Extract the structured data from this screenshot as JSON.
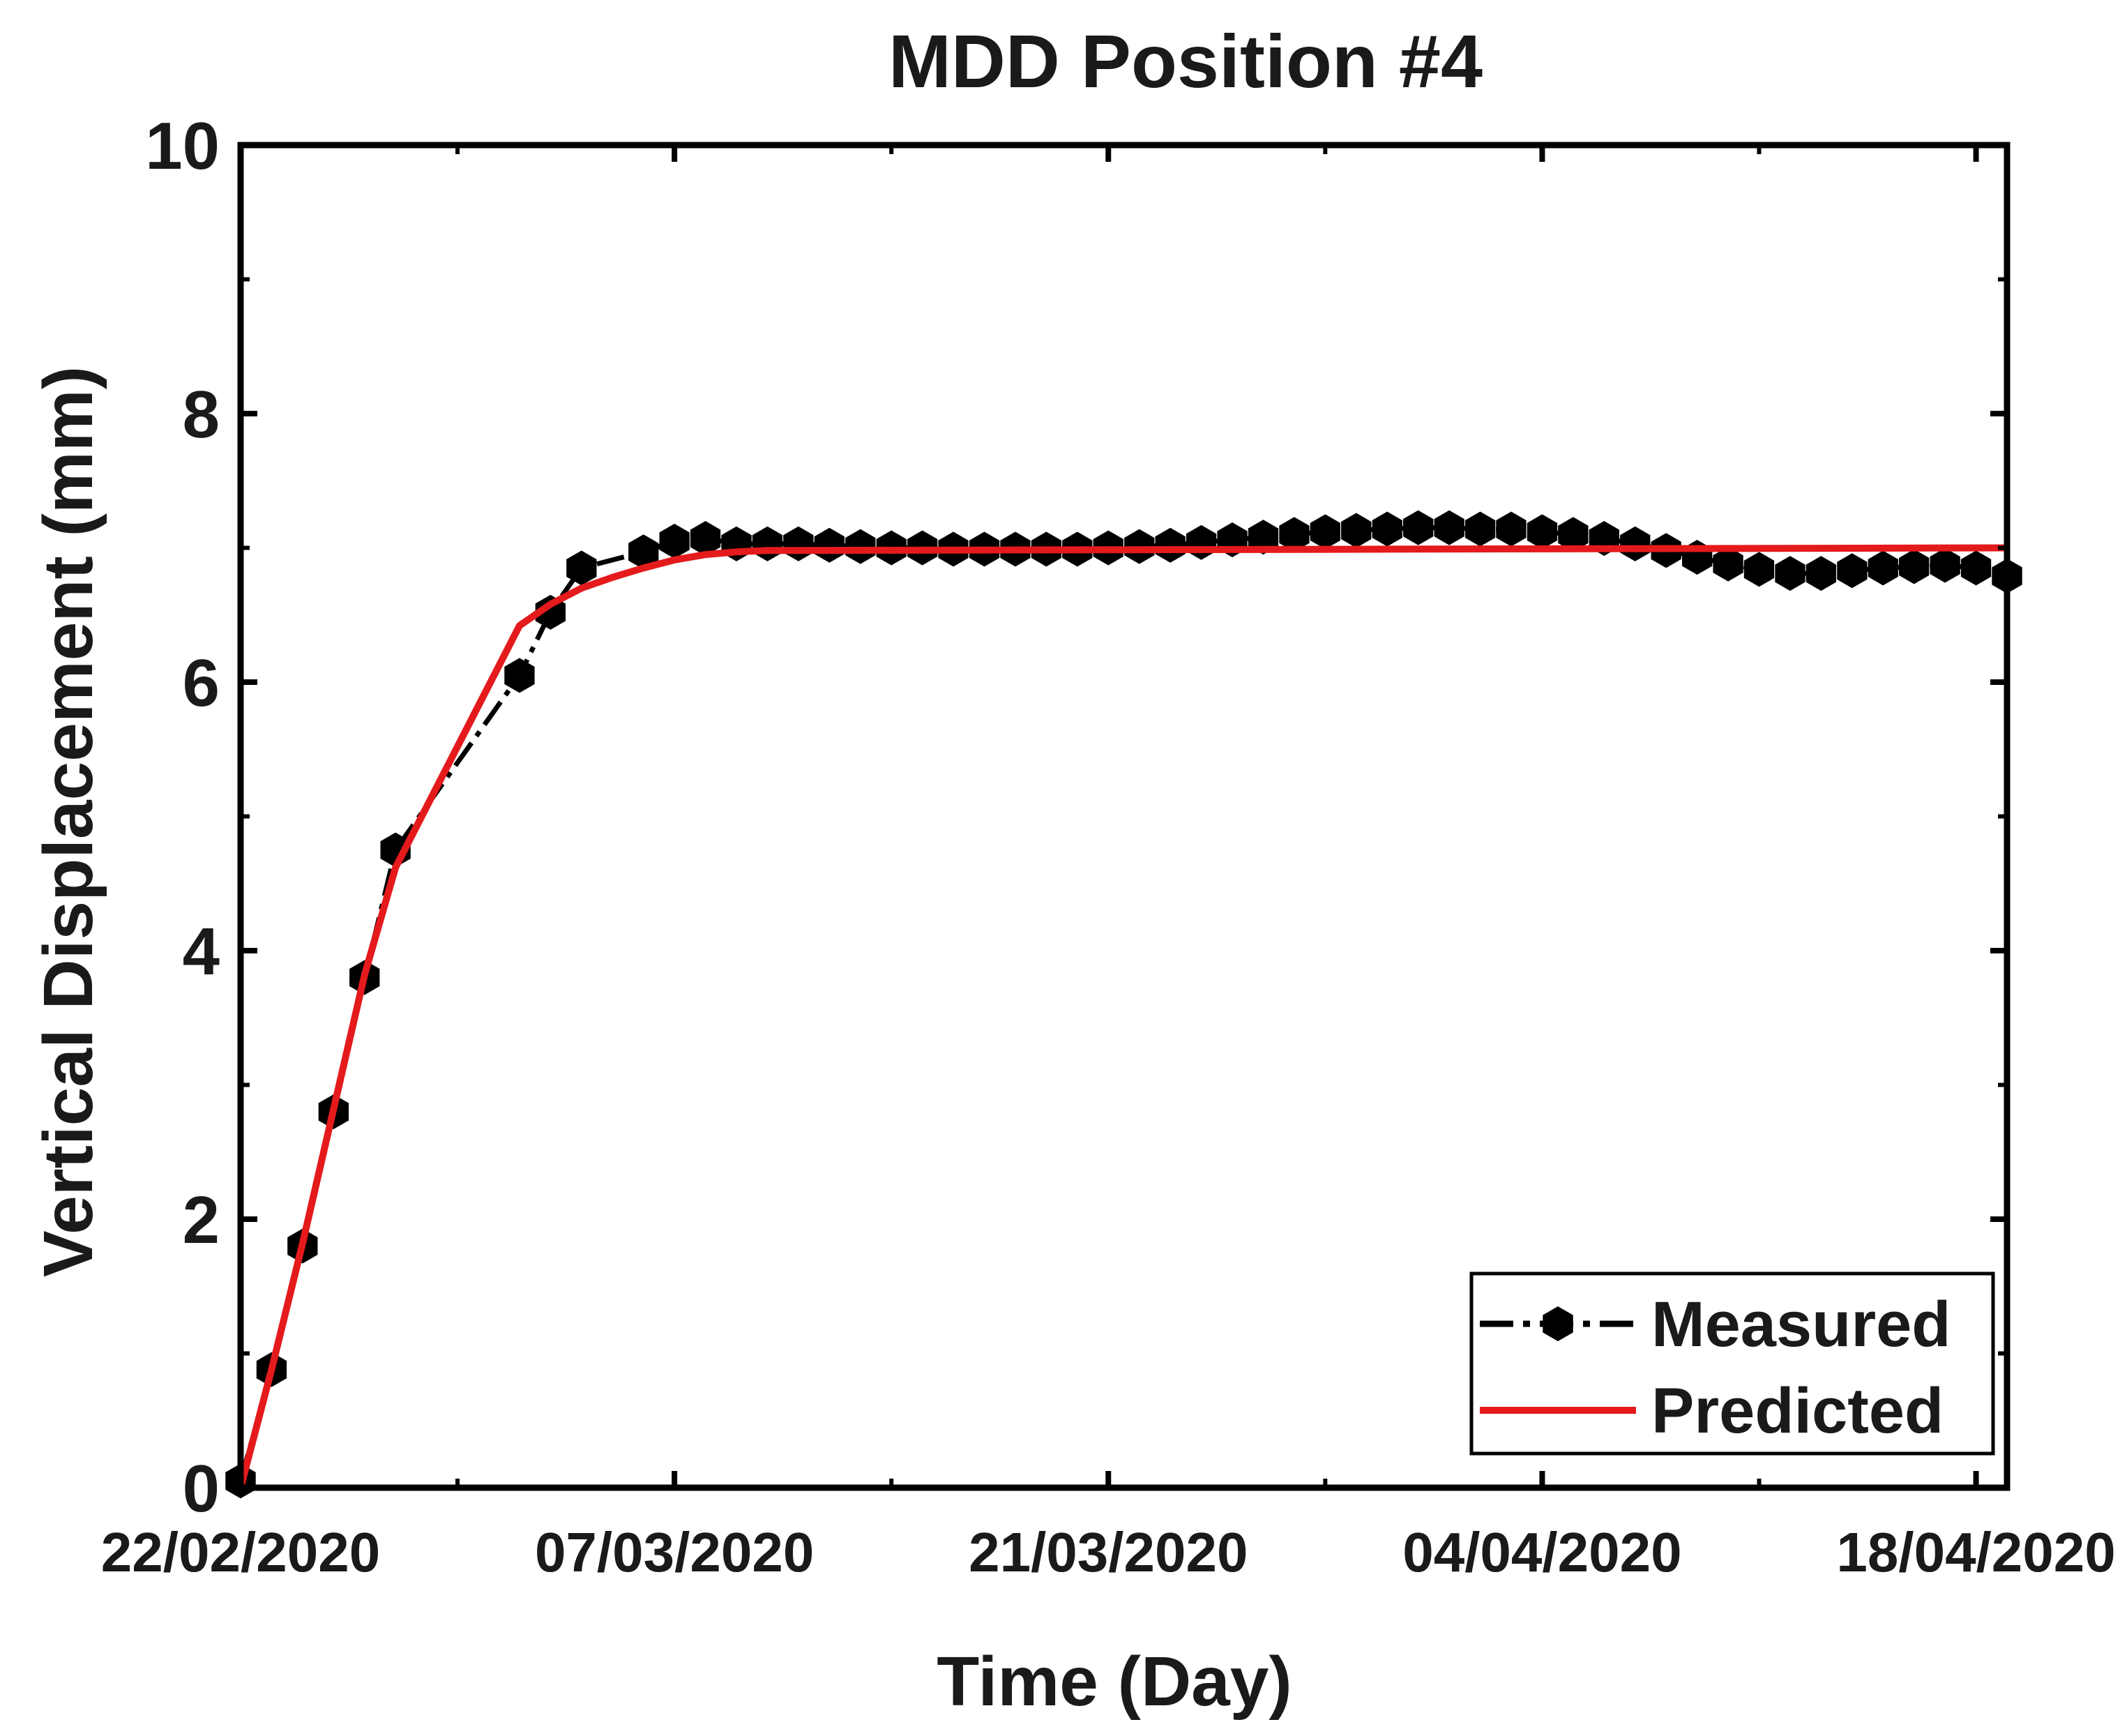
{
  "chart_data": {
    "type": "line",
    "title": "MDD Position #4",
    "xlabel": "Time (Day)",
    "ylabel": "Vertical Displacement (mm)",
    "x_tick_labels": [
      "22/02/2020",
      "07/03/2020",
      "21/03/2020",
      "04/04/2020",
      "18/04/2020"
    ],
    "x_ticks": [
      "2020-02-22",
      "2020-03-07",
      "2020-03-21",
      "2020-04-04",
      "2020-04-18"
    ],
    "xlim": [
      "2020-02-22",
      "2020-04-19"
    ],
    "ylim": [
      0,
      10
    ],
    "y_ticks": [
      0,
      2,
      4,
      6,
      8,
      10
    ],
    "grid": false,
    "legend_position": "bottom-right",
    "colors": {
      "Measured": "#000000",
      "Predicted": "#e41a1c"
    },
    "series": [
      {
        "name": "Measured",
        "style": "dash-dot line with hexagon markers",
        "x": [
          "2020-02-22",
          "2020-02-23",
          "2020-02-24",
          "2020-02-25",
          "2020-02-26",
          "2020-02-27",
          "2020-03-02",
          "2020-03-03",
          "2020-03-04",
          "2020-03-06",
          "2020-03-07",
          "2020-03-08",
          "2020-03-09",
          "2020-03-10",
          "2020-03-11",
          "2020-03-12",
          "2020-03-13",
          "2020-03-14",
          "2020-03-15",
          "2020-03-16",
          "2020-03-17",
          "2020-03-18",
          "2020-03-19",
          "2020-03-20",
          "2020-03-21",
          "2020-03-22",
          "2020-03-23",
          "2020-03-24",
          "2020-03-25",
          "2020-03-26",
          "2020-03-27",
          "2020-03-28",
          "2020-03-29",
          "2020-03-30",
          "2020-03-31",
          "2020-04-01",
          "2020-04-02",
          "2020-04-03",
          "2020-04-04",
          "2020-04-05",
          "2020-04-06",
          "2020-04-07",
          "2020-04-08",
          "2020-04-09",
          "2020-04-10",
          "2020-04-11",
          "2020-04-12",
          "2020-04-13",
          "2020-04-14",
          "2020-04-15",
          "2020-04-16",
          "2020-04-17",
          "2020-04-18",
          "2020-04-19"
        ],
        "y": [
          0.05,
          0.88,
          1.8,
          2.8,
          3.8,
          4.75,
          6.05,
          6.52,
          6.85,
          6.97,
          7.05,
          7.07,
          7.03,
          7.03,
          7.03,
          7.02,
          7.01,
          7.0,
          7.0,
          6.99,
          6.99,
          6.99,
          6.99,
          6.99,
          7.0,
          7.01,
          7.02,
          7.04,
          7.06,
          7.08,
          7.1,
          7.12,
          7.13,
          7.14,
          7.15,
          7.15,
          7.14,
          7.14,
          7.12,
          7.1,
          7.07,
          7.03,
          6.98,
          6.93,
          6.88,
          6.84,
          6.81,
          6.81,
          6.83,
          6.85,
          6.86,
          6.87,
          6.85,
          6.79
        ]
      },
      {
        "name": "Predicted",
        "style": "solid line",
        "x": [
          "2020-02-22",
          "2020-02-23",
          "2020-02-24",
          "2020-02-25",
          "2020-02-26",
          "2020-02-27",
          "2020-03-02",
          "2020-03-03",
          "2020-03-04",
          "2020-03-05",
          "2020-03-06",
          "2020-03-07",
          "2020-03-08",
          "2020-03-09",
          "2020-03-10",
          "2020-04-19"
        ],
        "y": [
          0.0,
          0.88,
          1.82,
          2.82,
          3.82,
          4.62,
          6.42,
          6.58,
          6.7,
          6.78,
          6.85,
          6.91,
          6.95,
          6.97,
          6.98,
          7.0
        ]
      }
    ]
  }
}
